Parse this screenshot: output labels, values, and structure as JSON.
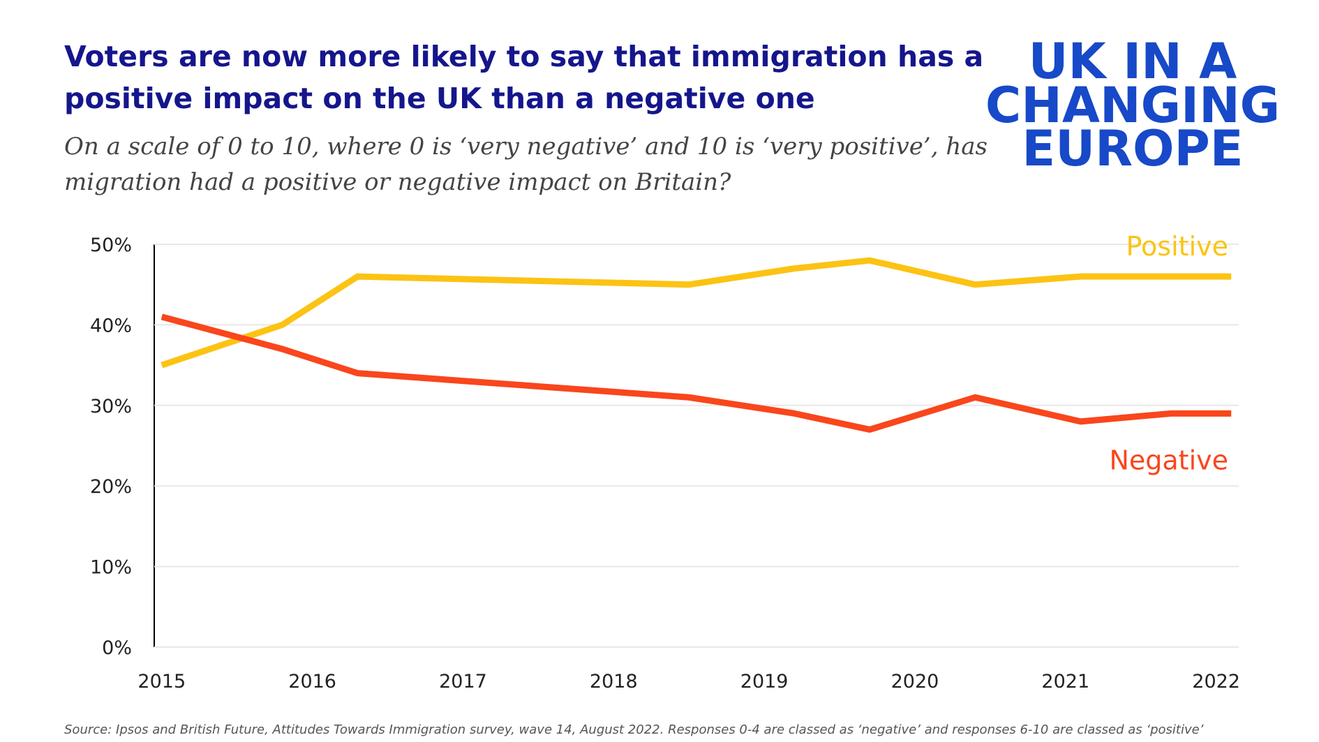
{
  "chart_data": {
    "type": "line",
    "title": [
      "Voters are now more likely to say that immigration has a",
      "positive impact on the UK than a negative one"
    ],
    "subtitle": [
      "On a scale of 0 to 10, where 0 is ‘very negative’ and 10 is ‘very positive’, has",
      "migration had a positive or negative impact on Britain?"
    ],
    "logo": [
      "UK IN A",
      "CHANGING",
      "EUROPE"
    ],
    "source": "Source: Ipsos and British Future, Attitudes Towards Immigration survey, wave 14, August 2022. Responses 0-4 are classed as ‘negative’ and responses 6-10 are classed as ‘positive’",
    "x": [
      2015,
      2015.8,
      2016.3,
      2018.5,
      2019.2,
      2019.7,
      2020.4,
      2021.1,
      2021.7,
      2022.1
    ],
    "series": [
      {
        "name": "Positive",
        "color": "#fcc314",
        "values": [
          35,
          40,
          46,
          45,
          47,
          48,
          45,
          46,
          46,
          46
        ]
      },
      {
        "name": "Negative",
        "color": "#f9461c",
        "values": [
          41,
          37,
          34,
          31,
          29,
          27,
          31,
          28,
          29,
          29
        ]
      }
    ],
    "xlim": [
      2014.95,
      2022.15
    ],
    "xticks": [
      2015,
      2016,
      2017,
      2018,
      2019,
      2020,
      2021,
      2022
    ],
    "ylim": [
      0,
      50
    ],
    "yticks": [
      {
        "value": 0,
        "label": "0%"
      },
      {
        "value": 10,
        "label": "10%"
      },
      {
        "value": 20,
        "label": "20%"
      },
      {
        "value": 30,
        "label": "30%"
      },
      {
        "value": 40,
        "label": "40%"
      },
      {
        "value": 50,
        "label": "50%"
      }
    ],
    "grid": true
  }
}
